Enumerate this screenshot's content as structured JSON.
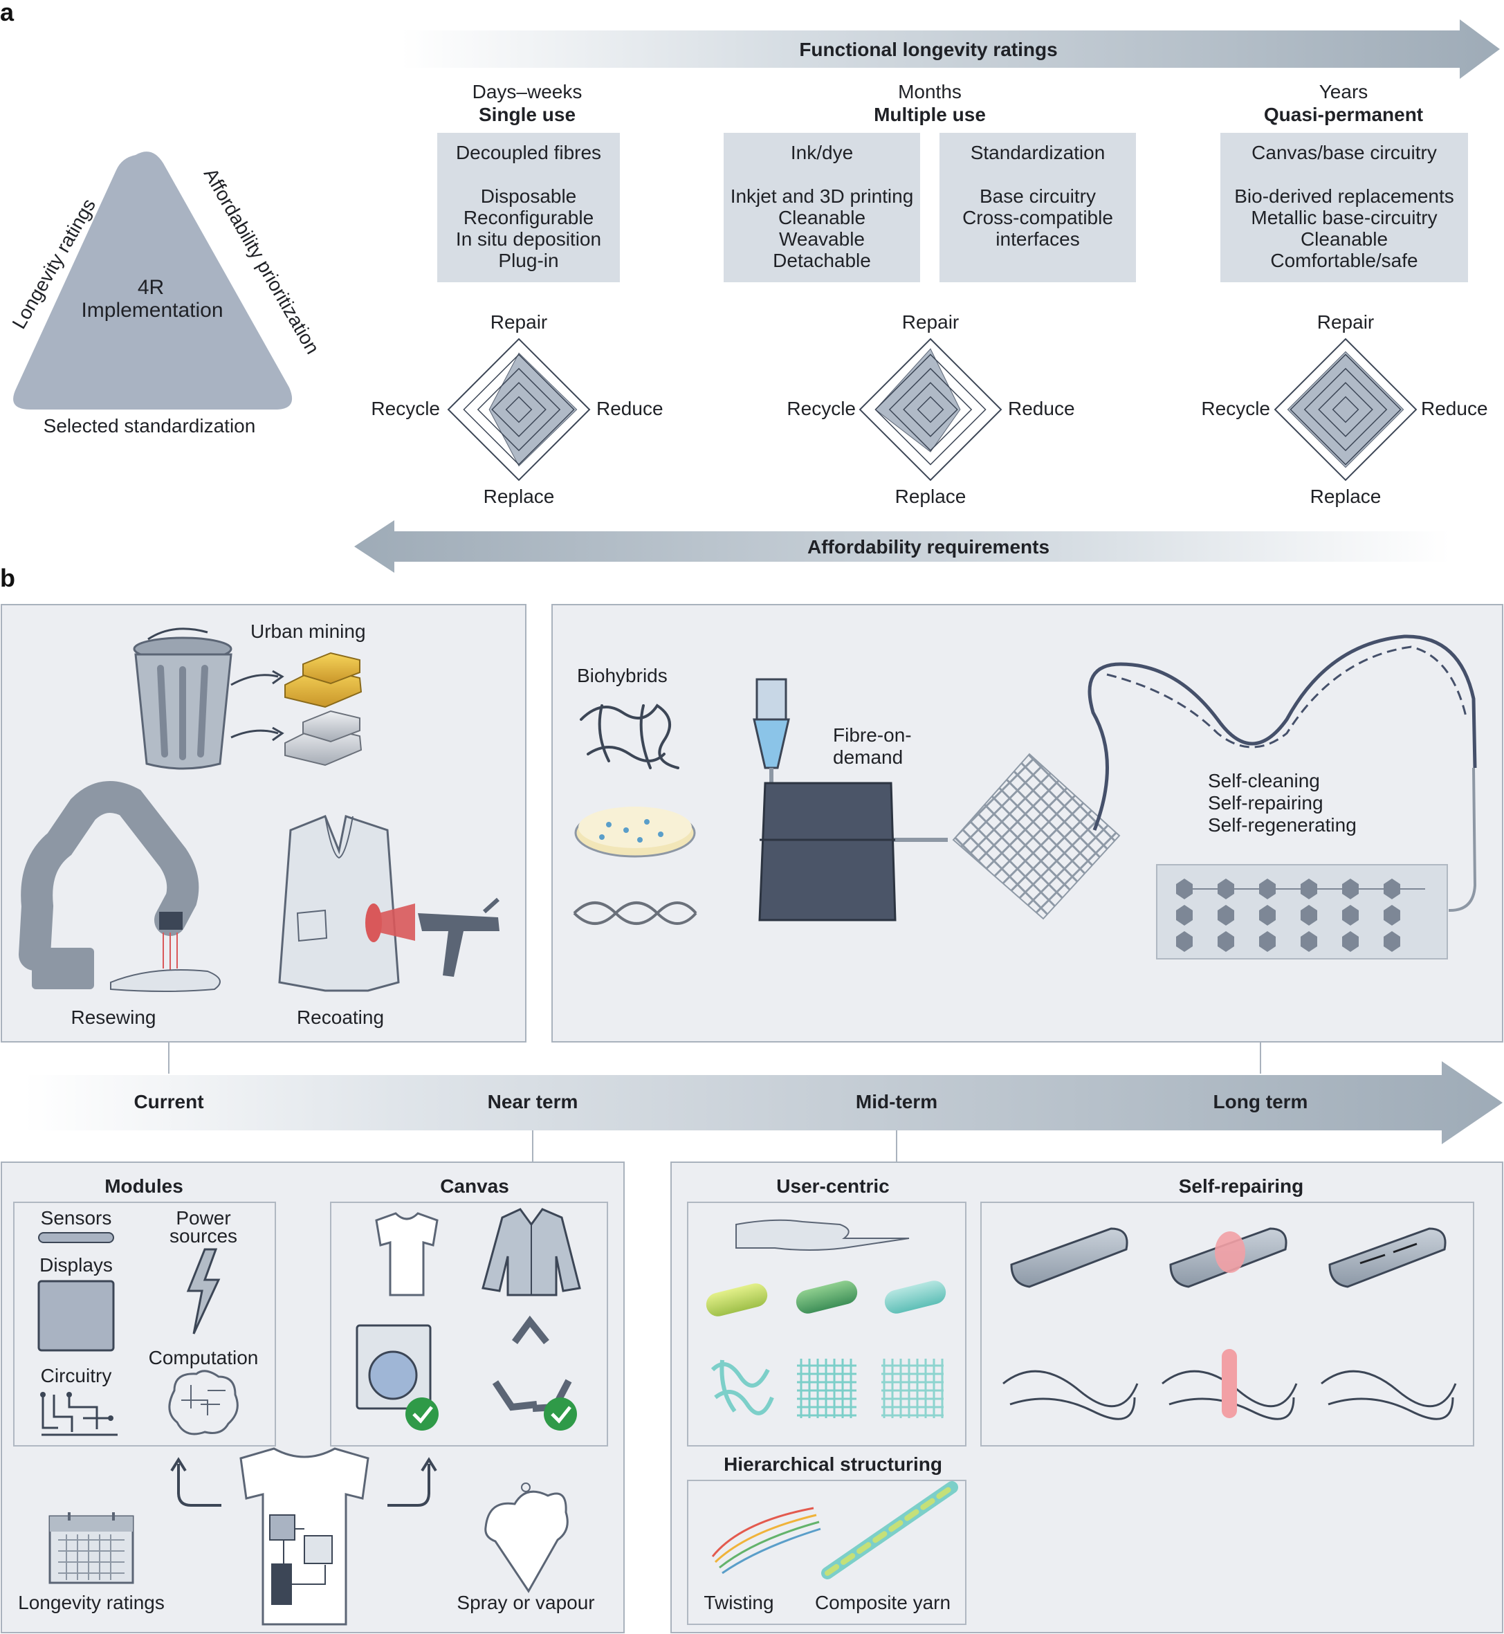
{
  "panel_labels": {
    "a": "a",
    "b": "b"
  },
  "panel_a": {
    "top_arrow_label": "Functional longevity ratings",
    "bottom_arrow_label": "Affordability requirements",
    "triangle": {
      "center_line1": "4R",
      "center_line2": "Implementation",
      "left_side": "Longevity ratings",
      "right_side": "Affordability prioritization",
      "bottom_side": "Selected standardization"
    },
    "columns": [
      {
        "time": "Days–weeks",
        "use": "Single use"
      },
      {
        "time": "Months",
        "use": "Multiple use"
      },
      {
        "time": "Years",
        "use": "Quasi-permanent"
      }
    ],
    "boxes": [
      {
        "heading": "Decoupled fibres",
        "lines": [
          "Disposable",
          "Reconfigurable",
          "In situ deposition",
          "Plug-in"
        ]
      },
      {
        "heading": "Ink/dye",
        "lines": [
          "Inkjet and 3D printing",
          "Cleanable",
          "Weavable",
          "Detachable"
        ]
      },
      {
        "heading": "Standardization",
        "lines": [
          "Base circuitry",
          "Cross-compatible",
          "interfaces"
        ]
      },
      {
        "heading": "Canvas/base circuitry",
        "lines": [
          "Bio-derived replacements",
          "Metallic base-circuitry",
          "Cleanable",
          "Comfortable/safe"
        ]
      }
    ],
    "radar_axes": {
      "top": "Repair",
      "right": "Reduce",
      "bottom": "Replace",
      "left": "Recycle"
    },
    "radar_values": [
      {
        "repair": 0.8,
        "reduce": 0.82,
        "replace": 0.8,
        "recycle": 0.42
      },
      {
        "repair": 0.86,
        "reduce": 0.42,
        "replace": 0.6,
        "recycle": 0.78
      },
      {
        "repair": 0.82,
        "reduce": 0.82,
        "replace": 0.82,
        "recycle": 0.82
      }
    ]
  },
  "panel_b": {
    "timeline": [
      "Current",
      "Near term",
      "Mid-term",
      "Long term"
    ],
    "top_left": {
      "urban_mining": "Urban mining",
      "resewing": "Resewing",
      "recoating": "Recoating"
    },
    "top_right": {
      "biohybrids": "Biohybrids",
      "fibre_on_demand_1": "Fibre-on-",
      "fibre_on_demand_2": "demand",
      "self_lines": [
        "Self-cleaning",
        "Self-repairing",
        "Self-regenerating"
      ]
    },
    "bottom_left": {
      "modules_title": "Modules",
      "canvas_title": "Canvas",
      "sensors": "Sensors",
      "power_1": "Power",
      "power_2": "sources",
      "displays": "Displays",
      "computation": "Computation",
      "circuitry": "Circuitry",
      "longevity": "Longevity ratings",
      "spray": "Spray or vapour"
    },
    "bottom_right": {
      "user_centric": "User-centric",
      "self_repairing": "Self-repairing",
      "hierarchical": "Hierarchical structuring",
      "twisting": "Twisting",
      "composite_yarn": "Composite yarn"
    }
  },
  "colors": {
    "panel_fill": "#eceef2",
    "box_fill": "#d7dde4",
    "arrow": "#a4b0bb",
    "dark": "#3c4656",
    "accent_red": "#d9585a",
    "teal": "#7ccfc9",
    "green_check": "#2f9a48"
  }
}
